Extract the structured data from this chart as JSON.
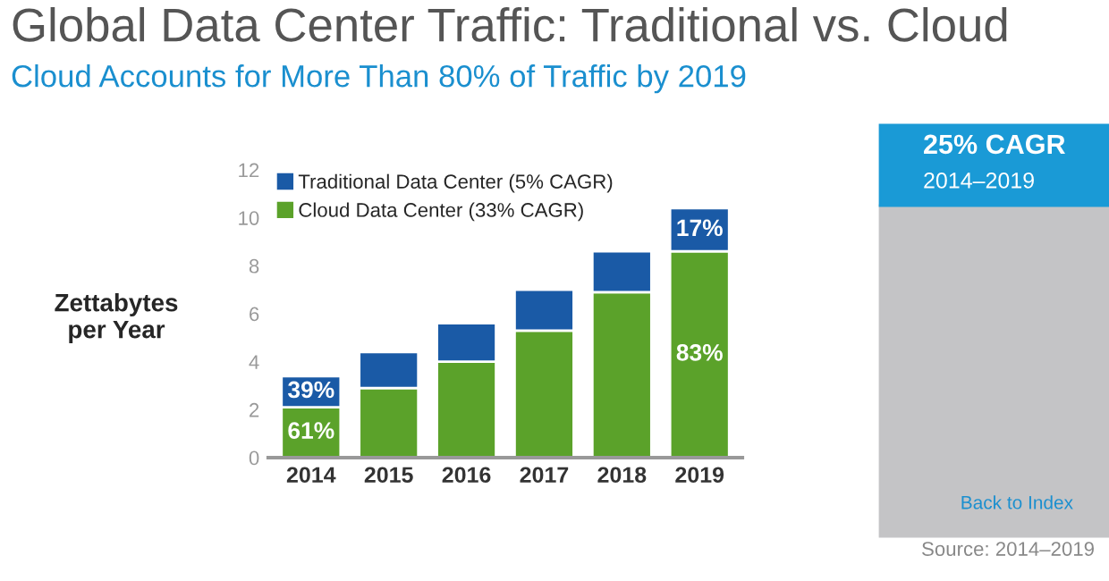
{
  "chart_data": {
    "type": "bar",
    "stacked": true,
    "title": "Global Data Center Traffic: Traditional vs. Cloud",
    "subtitle": "Cloud Accounts for More Than 80% of Traffic by 2019",
    "ylabel": "Zettabytes\nper Year",
    "categories": [
      "2014",
      "2015",
      "2016",
      "2017",
      "2018",
      "2019"
    ],
    "series": [
      {
        "name": "Cloud Data Center (33% CAGR)",
        "color": "#5ba22a",
        "values": [
          2.1,
          2.9,
          4.0,
          5.3,
          6.9,
          8.6
        ]
      },
      {
        "name": "Traditional Data Center (5% CAGR)",
        "color": "#1a5aa6",
        "values": [
          1.3,
          1.5,
          1.6,
          1.7,
          1.7,
          1.8
        ]
      }
    ],
    "ylim": [
      0,
      12
    ],
    "yticks": [
      0,
      2,
      4,
      6,
      8,
      10,
      12
    ],
    "legend": "top left",
    "annotations": [
      "25% CAGR",
      "2014–2019",
      "Back to Index",
      "Source: 2014–2019",
      "61%",
      "39%",
      "83%",
      "17%"
    ]
  }
}
